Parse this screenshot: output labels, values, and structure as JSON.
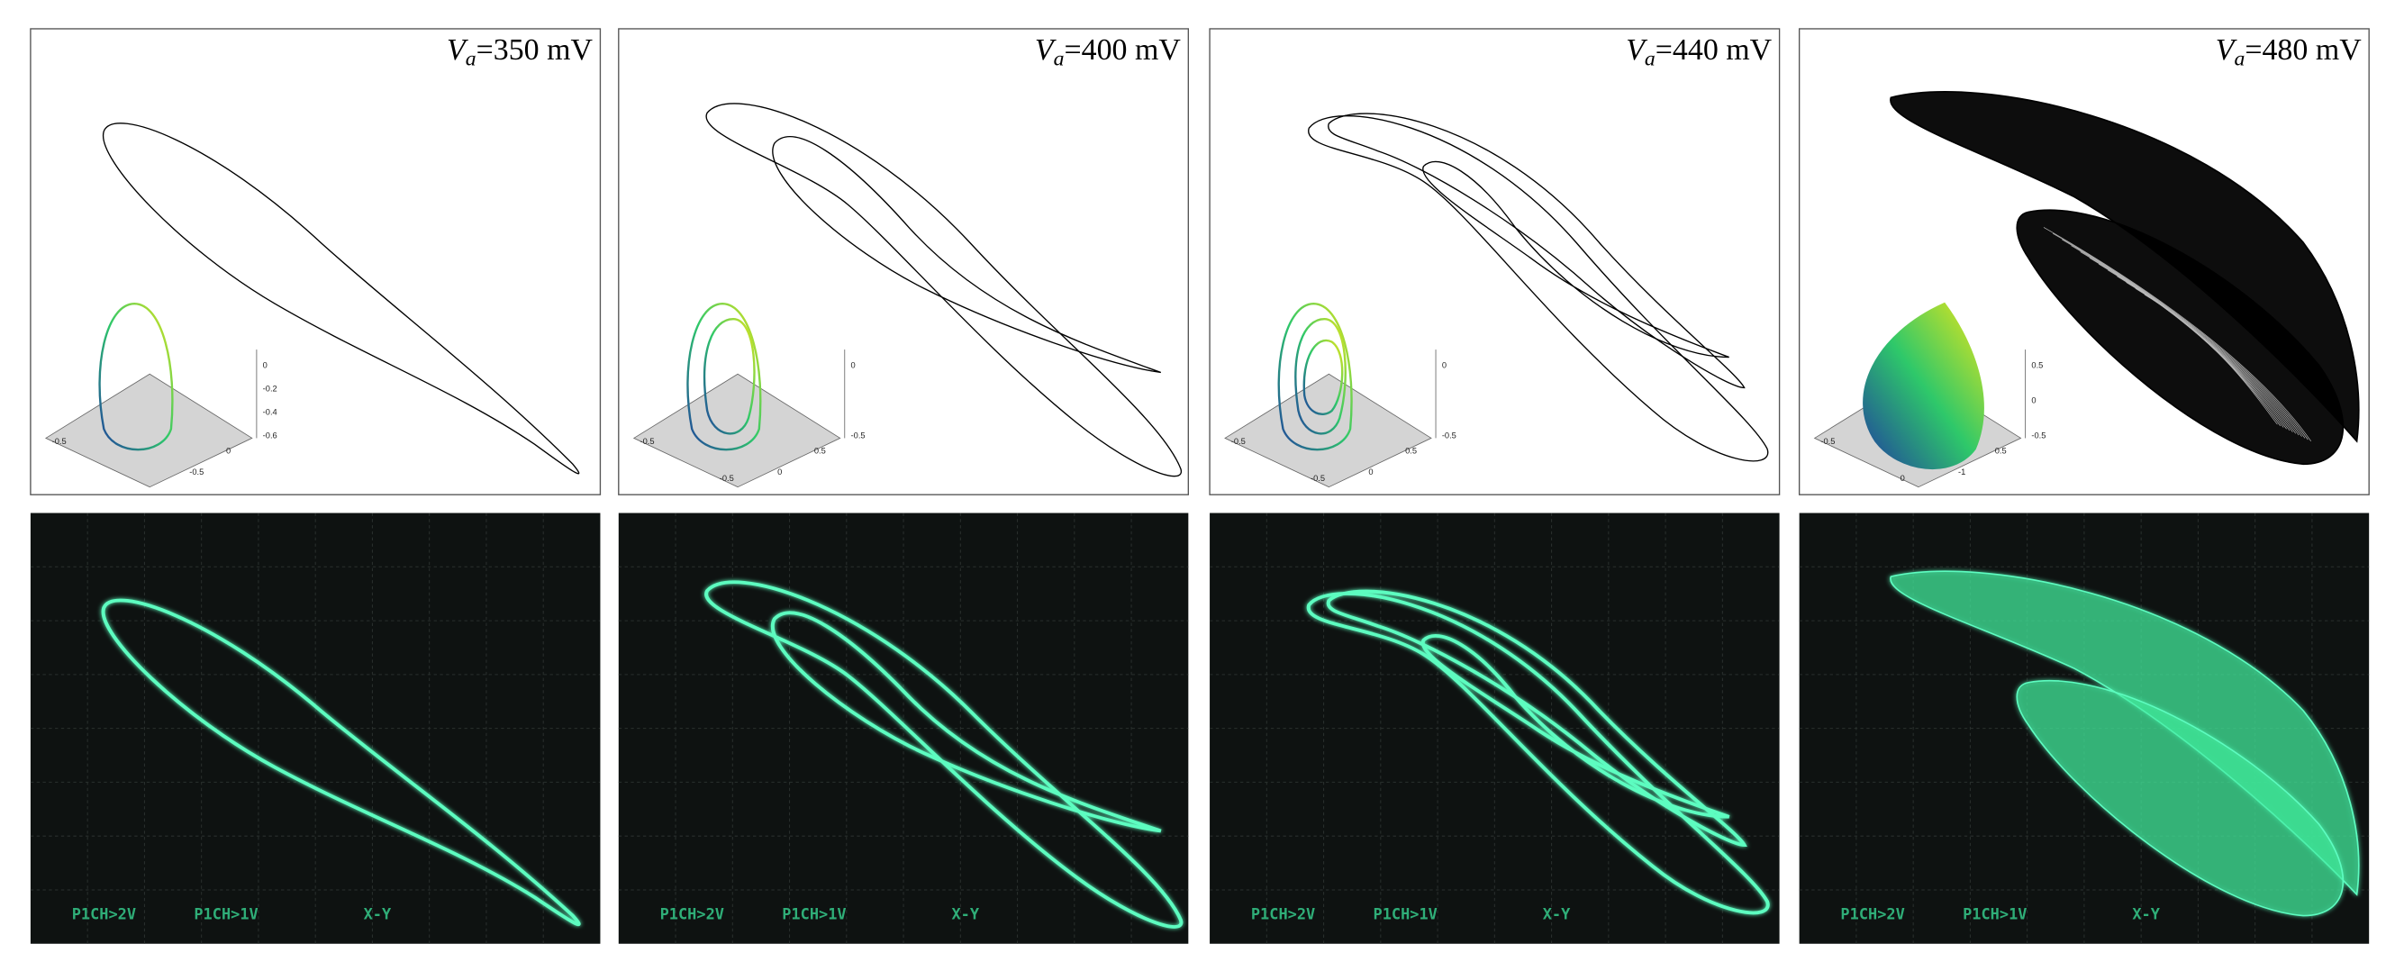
{
  "panels": [
    {
      "label": {
        "symbol": "V",
        "subscript": "a",
        "value": "=350 mV"
      },
      "inset_ticks": [
        "0",
        "-0.2",
        "-0.4",
        "-0.6"
      ],
      "inset_axis_labels": [
        "-0.5",
        "0",
        "-0.5"
      ],
      "scope_labels": [
        "P1CH>2V",
        "P1CH>1V",
        "X-Y"
      ]
    },
    {
      "label": {
        "symbol": "V",
        "subscript": "a",
        "value": "=400 mV"
      },
      "inset_ticks": [
        "0",
        "-0.5"
      ],
      "inset_axis_labels": [
        "-0.5",
        "0.5",
        "0",
        "-0.5"
      ],
      "scope_labels": [
        "P1CH>2V",
        "P1CH>1V",
        "X-Y"
      ]
    },
    {
      "label": {
        "symbol": "V",
        "subscript": "a",
        "value": "=440 mV"
      },
      "inset_ticks": [
        "0",
        "-0.5"
      ],
      "inset_axis_labels": [
        "-0.5",
        "0.5",
        "0",
        "-0.5"
      ],
      "scope_labels": [
        "P1CH>2V",
        "P1CH>1V",
        "X-Y"
      ]
    },
    {
      "label": {
        "symbol": "V",
        "subscript": "a",
        "value": "=480 mV"
      },
      "inset_ticks": [
        "0.5",
        "0",
        "-0.5"
      ],
      "inset_axis_labels": [
        "-0.5",
        "0.5",
        "-1",
        "0"
      ],
      "scope_labels": [
        "P1CH>2V",
        "P1CH>1V",
        "X-Y"
      ]
    }
  ]
}
